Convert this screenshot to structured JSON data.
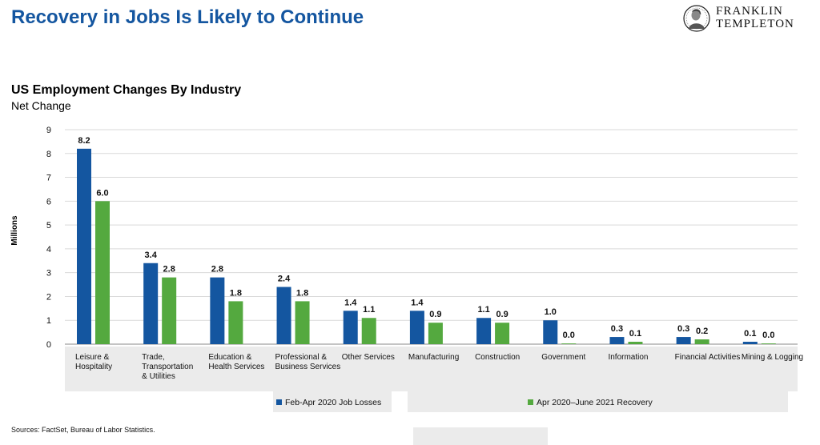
{
  "headline": "Recovery in Jobs Is Likely to Continue",
  "logo": {
    "line1": "FRANKLIN",
    "line2": "TEMPLETON"
  },
  "colors": {
    "headline": "#1456a0",
    "series1": "#1456a0",
    "series2": "#54a93f"
  },
  "source": "Sources: FactSet, Bureau of Labor Statistics.",
  "chart_data": {
    "type": "bar",
    "title": "US Employment Changes By Industry",
    "subtitle": "Net Change",
    "xlabel": "",
    "ylabel": "Millions",
    "ylim": [
      0,
      9
    ],
    "yticks": [
      "0",
      "1",
      "2",
      "3",
      "4",
      "5",
      "6",
      "7",
      "8",
      "9"
    ],
    "grid": true,
    "legend_position": "bottom",
    "categories": [
      [
        "Leisure &",
        "Hospitality"
      ],
      [
        "Trade,",
        "Transportation",
        "& Utilities"
      ],
      [
        "Education &",
        "Health Services"
      ],
      [
        "Professional &",
        "Business Services"
      ],
      [
        "Other Services"
      ],
      [
        "Manufacturing"
      ],
      [
        "Construction"
      ],
      [
        "Government"
      ],
      [
        "Information"
      ],
      [
        "Financial Activities"
      ],
      [
        "Mining & Logging"
      ]
    ],
    "series": [
      {
        "name": "Feb-Apr 2020 Job Losses",
        "color": "#1456a0",
        "values": [
          8.2,
          3.4,
          2.8,
          2.4,
          1.4,
          1.4,
          1.1,
          1.0,
          0.3,
          0.3,
          0.1
        ],
        "labels": [
          "8.2",
          "3.4",
          "2.8",
          "2.4",
          "1.4",
          "1.4",
          "1.1",
          "1.0",
          "0.3",
          "0.3",
          "0.1"
        ]
      },
      {
        "name": "Apr 2020–June 2021 Recovery",
        "color": "#54a93f",
        "values": [
          6.0,
          2.8,
          1.8,
          1.8,
          1.1,
          0.9,
          0.9,
          0.03,
          0.1,
          0.2,
          0.03
        ],
        "labels": [
          "6.0",
          "2.8",
          "1.8",
          "1.8",
          "1.1",
          "0.9",
          "0.9",
          "0.0",
          "0.1",
          "0.2",
          "0.0"
        ]
      }
    ]
  }
}
